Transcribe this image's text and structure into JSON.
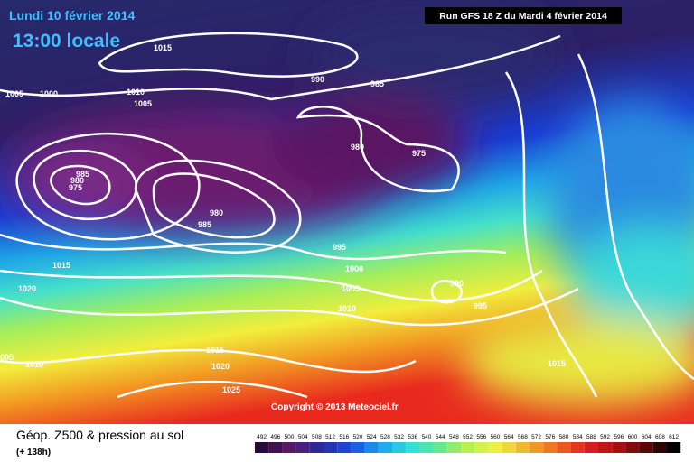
{
  "header": {
    "date": "Lundi 10 février 2014",
    "time": "13:00 locale",
    "run": "Run GFS 18 Z du Mardi 4 février 2014"
  },
  "isobar_labels": [
    "1015",
    "1005",
    "1000",
    "1010",
    "1005",
    "990",
    "985",
    "980",
    "975",
    "985",
    "980",
    "975",
    "980",
    "985",
    "995",
    "1000",
    "1015",
    "1020",
    "1005",
    "990",
    "1010",
    "995",
    "1015",
    "1020",
    "1010",
    "005",
    "1025",
    "1015"
  ],
  "copyright": "Copyright © 2013 Meteociel.fr",
  "legend": {
    "title": "Géop. Z500 & pression au sol",
    "lead": "(+ 138h)",
    "scale": [
      "492",
      "496",
      "500",
      "504",
      "508",
      "512",
      "516",
      "520",
      "524",
      "528",
      "532",
      "536",
      "540",
      "544",
      "548",
      "552",
      "556",
      "560",
      "564",
      "568",
      "572",
      "576",
      "580",
      "584",
      "588",
      "592",
      "596",
      "600",
      "604",
      "608",
      "612"
    ]
  }
}
